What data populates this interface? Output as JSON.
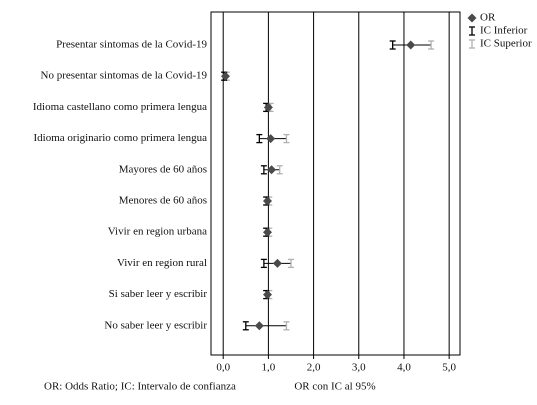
{
  "chart_data": {
    "type": "forest",
    "xlabel": "OR con IC al 95%",
    "note": "OR: Odds Ratio; IC: Intervalo de confianza",
    "categories": [
      "Presentar sintomas de la Covid-19",
      "No presentar sintomas de la Covid-19",
      "Idioma castellano como primera lengua",
      "Idioma originario como primera lengua",
      "Mayores de 60 años",
      "Menores de 60 años",
      "Vivir en region urbana",
      "Vivir en region rural",
      "Si saber leer y escribir",
      "No saber leer y escribir"
    ],
    "series": [
      {
        "name": "OR",
        "color": "#4a4a4a",
        "values": [
          4.15,
          0.05,
          1.0,
          1.05,
          1.07,
          0.98,
          0.98,
          1.2,
          0.98,
          0.8
        ]
      },
      {
        "name": "IC Inferior",
        "color": "#000000",
        "values": [
          3.75,
          0.02,
          0.95,
          0.8,
          0.9,
          0.95,
          0.95,
          0.9,
          0.95,
          0.5
        ]
      },
      {
        "name": "IC Superior",
        "color": "#b0b0b0",
        "values": [
          4.6,
          0.08,
          1.05,
          1.4,
          1.25,
          1.02,
          1.02,
          1.5,
          1.02,
          1.4
        ]
      }
    ],
    "xlim": [
      -0.27,
      5.24
    ],
    "xticks": [
      {
        "value": 0,
        "label": "0,0"
      },
      {
        "value": 1,
        "label": "1,0"
      },
      {
        "value": 2,
        "label": "2,0"
      },
      {
        "value": 3,
        "label": "3,0"
      },
      {
        "value": 4,
        "label": "4,0"
      },
      {
        "value": 5,
        "label": "5,0"
      }
    ],
    "grid": true,
    "legend": "top-right"
  }
}
